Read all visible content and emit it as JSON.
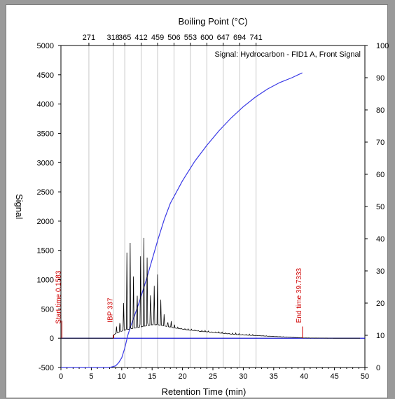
{
  "chart_data": {
    "type": "line",
    "title": "",
    "signal_label": "Signal: Hydrocarbon - FID1 A, Front Signal",
    "xlabel": "Retention Time (min)",
    "ylabel": "Signal",
    "top_axis_label": "Boiling Point (°C)",
    "xlim": [
      0,
      50
    ],
    "ylim": [
      -500,
      5000
    ],
    "y2lim": [
      0,
      100
    ],
    "x_ticks": [
      "0",
      "5",
      "10",
      "15",
      "20",
      "25",
      "30",
      "35",
      "40",
      "45",
      "50"
    ],
    "y_ticks": [
      "-500",
      "0",
      "500",
      "1000",
      "1500",
      "2000",
      "2500",
      "3000",
      "3500",
      "4000",
      "4500",
      "5000"
    ],
    "y2_ticks": [
      "0",
      "10",
      "20",
      "30",
      "40",
      "50",
      "60",
      "70",
      "80",
      "90",
      "100"
    ],
    "top_ticks": [
      {
        "x": 4.6,
        "label": "271"
      },
      {
        "x": 8.6,
        "label": "318"
      },
      {
        "x": 10.5,
        "label": "365"
      },
      {
        "x": 13.2,
        "label": "412"
      },
      {
        "x": 15.9,
        "label": "459"
      },
      {
        "x": 18.6,
        "label": "506"
      },
      {
        "x": 21.3,
        "label": "553"
      },
      {
        "x": 24.0,
        "label": "600"
      },
      {
        "x": 26.7,
        "label": "647"
      },
      {
        "x": 29.4,
        "label": "694"
      },
      {
        "x": 32.1,
        "label": "741"
      }
    ],
    "grid": "vertical",
    "annotations": [
      {
        "x": 0.1583,
        "label": "Start time 0.1583"
      },
      {
        "x": 8.7,
        "label": "IBP 337"
      },
      {
        "x": 39.7333,
        "label": "End time 39.7333"
      }
    ],
    "series": [
      {
        "kind": "baseline",
        "color": "#0000cc",
        "x": [
          0,
          50
        ],
        "y": [
          0,
          0
        ]
      },
      {
        "kind": "cumulative",
        "color": "#3a3ae6",
        "x": [
          8,
          9,
          9.5,
          10,
          10.5,
          11,
          11.5,
          12,
          13,
          14,
          15,
          16,
          17,
          18,
          20,
          22,
          24,
          26,
          28,
          30,
          32,
          34,
          36,
          38,
          39.7
        ],
        "y": [
          0,
          0.5,
          1.5,
          3,
          6,
          10,
          13,
          15.5,
          21,
          27,
          33.5,
          40,
          46,
          51,
          58,
          64,
          69,
          73.5,
          77.5,
          81,
          84,
          86.5,
          88.5,
          90,
          91.5
        ]
      },
      {
        "kind": "chromatogram",
        "color": "#000000",
        "envelope_x": [
          8.6,
          9,
          9.5,
          10,
          10.5,
          11,
          11.5,
          12,
          12.5,
          13,
          13.5,
          14,
          14.5,
          15,
          15.5,
          16,
          16.5,
          17,
          17.5,
          18,
          18.5,
          19,
          20,
          21,
          22,
          23,
          24,
          25,
          26,
          28,
          30,
          32,
          34,
          36,
          38,
          40,
          42,
          45,
          48,
          49.2
        ],
        "peak_y": [
          50,
          160,
          420,
          750,
          1100,
          1740,
          1720,
          1750,
          1720,
          1760,
          1700,
          1750,
          1650,
          1680,
          1300,
          1100,
          620,
          560,
          420,
          350,
          250,
          200,
          180,
          160,
          150,
          140,
          130,
          120,
          110,
          95,
          80,
          60,
          40,
          30,
          20,
          0,
          0,
          0,
          0,
          0
        ],
        "base_y": [
          50,
          80,
          100,
          120,
          140,
          150,
          160,
          170,
          180,
          190,
          200,
          210,
          220,
          230,
          230,
          230,
          220,
          210,
          200,
          190,
          180,
          170,
          155,
          140,
          130,
          115,
          110,
          100,
          90,
          70,
          55,
          45,
          35,
          25,
          15,
          5,
          3,
          0,
          0,
          0
        ]
      }
    ]
  }
}
